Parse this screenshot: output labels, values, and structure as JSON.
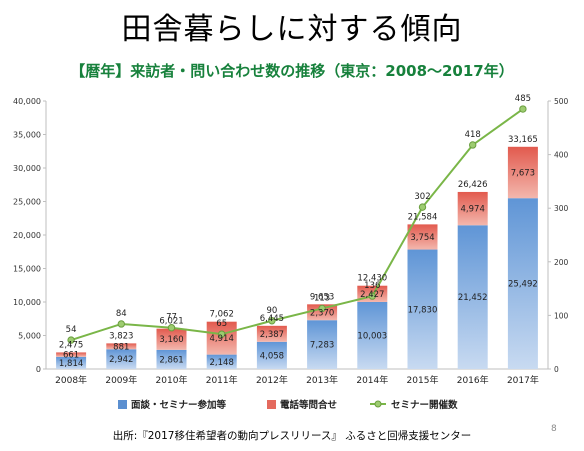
{
  "slide": {
    "title": "田舎暮らしに対する傾向",
    "source": "出所:『2017移住希望者の動向プレスリリース』 ふるさと回帰支援センター",
    "page_number": "8"
  },
  "chart_data": {
    "type": "bar",
    "stacked": true,
    "title": "【暦年】来訪者・問い合わせ数の推移（東京：2008～2017年）",
    "categories": [
      "2008年",
      "2009年",
      "2010年",
      "2011年",
      "2012年",
      "2013年",
      "2014年",
      "2015年",
      "2016年",
      "2017年"
    ],
    "series": [
      {
        "name": "面談・セミナー参加等",
        "type": "bar",
        "axis": "left",
        "color": "#5b8fd0",
        "values": [
          1814,
          2942,
          2861,
          2148,
          4058,
          7283,
          10003,
          17830,
          21452,
          25492
        ]
      },
      {
        "name": "電話等問合せ",
        "type": "bar",
        "axis": "left",
        "color": "#e46a5e",
        "values": [
          661,
          881,
          3160,
          4914,
          2387,
          2370,
          2427,
          3754,
          4974,
          7673
        ]
      },
      {
        "name": "セミナー開催数",
        "type": "line",
        "axis": "right",
        "color": "#7ab648",
        "values": [
          54,
          84,
          77,
          65,
          90,
          113,
          136,
          302,
          418,
          485
        ]
      }
    ],
    "totals": [
      2475,
      3823,
      6021,
      7062,
      6445,
      9653,
      12430,
      21584,
      26426,
      33165
    ],
    "ylim": [
      0,
      40000
    ],
    "yticks": [
      "0",
      "5,000",
      "10,000",
      "15,000",
      "20,000",
      "25,000",
      "30,000",
      "35,000",
      "40,000"
    ],
    "y2lim": [
      0,
      500
    ],
    "y2ticks": [
      "0",
      "100",
      "200",
      "300",
      "400",
      "500"
    ],
    "legend_position": "bottom",
    "grid": false
  }
}
